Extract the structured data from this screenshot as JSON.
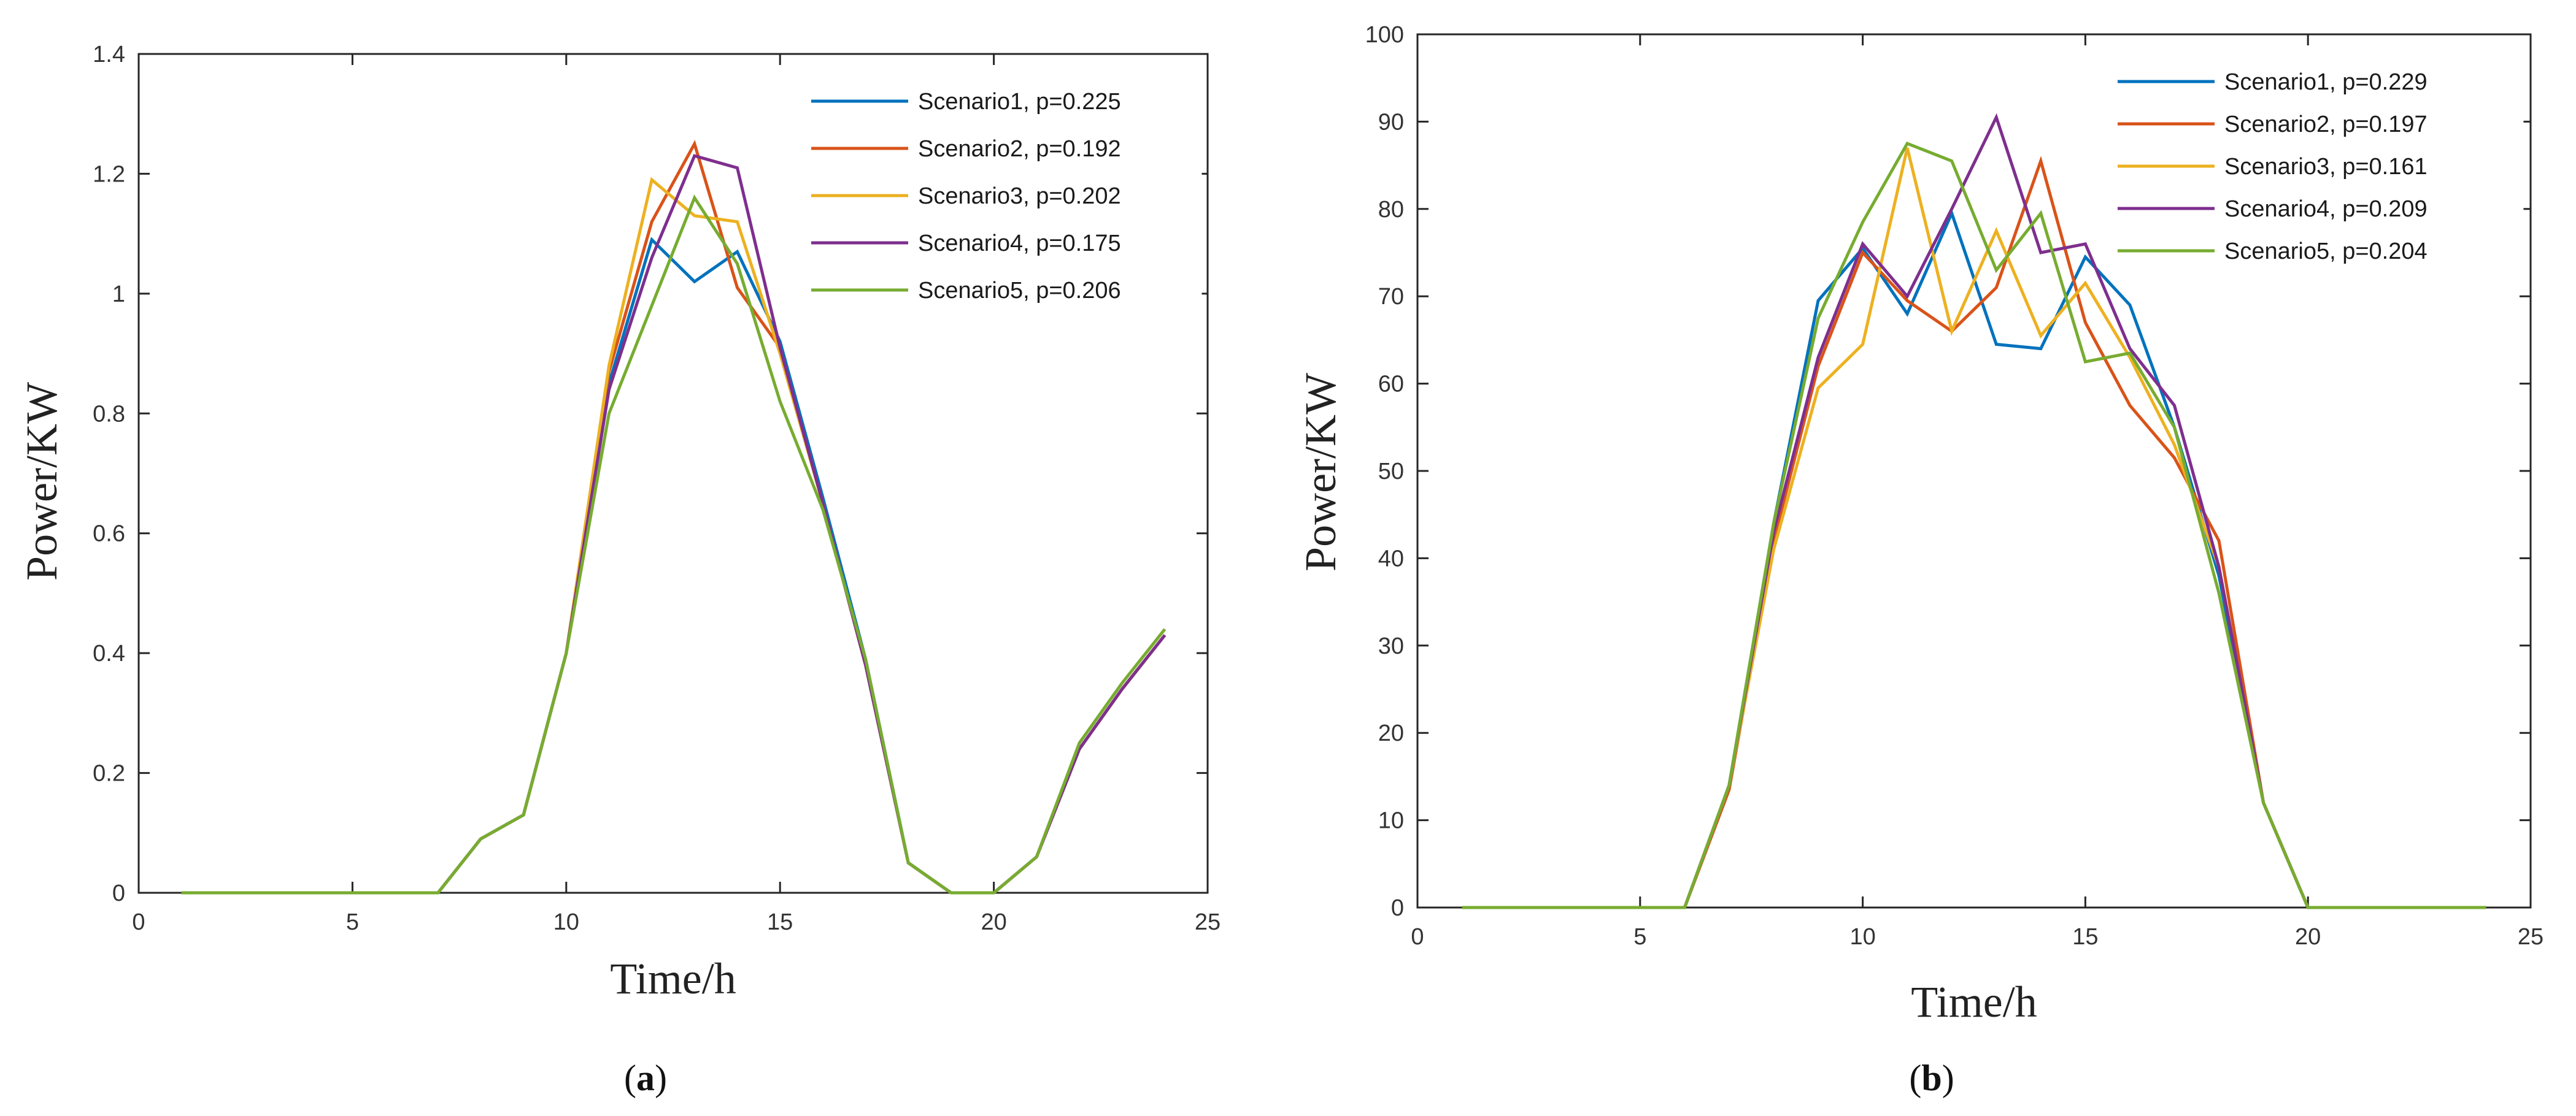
{
  "chart_data": [
    {
      "type": "line",
      "panel": "a",
      "caption_letter": "a",
      "xlabel": "Time/h",
      "ylabel": "Power/KW",
      "xlim": [
        0,
        25
      ],
      "ylim": [
        0,
        1.4
      ],
      "xticks": [
        0,
        5,
        10,
        15,
        20,
        25
      ],
      "yticks": [
        0,
        0.2,
        0.4,
        0.6,
        0.8,
        1,
        1.2,
        1.4
      ],
      "x": [
        1,
        2,
        3,
        4,
        5,
        6,
        7,
        8,
        9,
        10,
        11,
        12,
        13,
        14,
        15,
        16,
        17,
        18,
        19,
        20,
        21,
        22,
        23,
        24
      ],
      "legend_position": "top-right",
      "series": [
        {
          "name": "Scenario1, p=0.225",
          "color": "#0072BD",
          "values": [
            0,
            0,
            0,
            0,
            0,
            0,
            0,
            0.09,
            0.13,
            0.4,
            0.85,
            1.09,
            1.02,
            1.07,
            0.92,
            0.66,
            0.39,
            0.05,
            0,
            0,
            0.06,
            0.24,
            0.34,
            0.43
          ]
        },
        {
          "name": "Scenario2, p=0.192",
          "color": "#D95319",
          "values": [
            0,
            0,
            0,
            0,
            0,
            0,
            0,
            0.09,
            0.13,
            0.4,
            0.87,
            1.12,
            1.25,
            1.01,
            0.91,
            0.65,
            0.38,
            0.05,
            0,
            0,
            0.06,
            0.24,
            0.34,
            0.43
          ]
        },
        {
          "name": "Scenario3, p=0.202",
          "color": "#EDB120",
          "values": [
            0,
            0,
            0,
            0,
            0,
            0,
            0,
            0.09,
            0.13,
            0.4,
            0.88,
            1.19,
            1.13,
            1.12,
            0.9,
            0.65,
            0.38,
            0.05,
            0,
            0,
            0.06,
            0.24,
            0.34,
            0.43
          ]
        },
        {
          "name": "Scenario4, p=0.175",
          "color": "#7E2F8E",
          "values": [
            0,
            0,
            0,
            0,
            0,
            0,
            0,
            0.09,
            0.13,
            0.4,
            0.84,
            1.06,
            1.23,
            1.21,
            0.91,
            0.65,
            0.38,
            0.05,
            0,
            0,
            0.06,
            0.24,
            0.34,
            0.43
          ]
        },
        {
          "name": "Scenario5, p=0.206",
          "color": "#77AC30",
          "values": [
            0,
            0,
            0,
            0,
            0,
            0,
            0,
            0.09,
            0.13,
            0.4,
            0.8,
            0.98,
            1.16,
            1.05,
            0.82,
            0.64,
            0.39,
            0.05,
            0,
            0,
            0.06,
            0.25,
            0.35,
            0.44
          ]
        }
      ]
    },
    {
      "type": "line",
      "panel": "b",
      "caption_letter": "b",
      "xlabel": "Time/h",
      "ylabel": "Power/KW",
      "xlim": [
        0,
        25
      ],
      "ylim": [
        0,
        100
      ],
      "xticks": [
        0,
        5,
        10,
        15,
        20,
        25
      ],
      "yticks": [
        0,
        10,
        20,
        30,
        40,
        50,
        60,
        70,
        80,
        90,
        100
      ],
      "x": [
        1,
        2,
        3,
        4,
        5,
        6,
        7,
        8,
        9,
        10,
        11,
        12,
        13,
        14,
        15,
        16,
        17,
        18,
        19,
        20,
        21,
        22,
        23,
        24
      ],
      "legend_position": "top-right",
      "series": [
        {
          "name": "Scenario1, p=0.229",
          "color": "#0072BD",
          "values": [
            0,
            0,
            0,
            0,
            0,
            0,
            14,
            44,
            69.5,
            75.5,
            68,
            79.5,
            64.5,
            64,
            74.5,
            69,
            55,
            38,
            12,
            0,
            0,
            0,
            0,
            0
          ]
        },
        {
          "name": "Scenario2, p=0.197",
          "color": "#D95319",
          "values": [
            0,
            0,
            0,
            0,
            0,
            0,
            13.5,
            42,
            62,
            75,
            69.5,
            66,
            71,
            85.5,
            67,
            57.5,
            51.5,
            42,
            12,
            0,
            0,
            0,
            0,
            0
          ]
        },
        {
          "name": "Scenario3, p=0.161",
          "color": "#EDB120",
          "values": [
            0,
            0,
            0,
            0,
            0,
            0,
            14,
            41,
            59.5,
            64.5,
            87,
            66,
            77.5,
            65.5,
            71.5,
            63,
            53,
            39,
            12,
            0,
            0,
            0,
            0,
            0
          ]
        },
        {
          "name": "Scenario4, p=0.209",
          "color": "#7E2F8E",
          "values": [
            0,
            0,
            0,
            0,
            0,
            0,
            14,
            43,
            63,
            76,
            70,
            80,
            90.5,
            75,
            76,
            64,
            57.5,
            39,
            12,
            0,
            0,
            0,
            0,
            0
          ]
        },
        {
          "name": "Scenario5, p=0.204",
          "color": "#77AC30",
          "values": [
            0,
            0,
            0,
            0,
            0,
            0,
            14,
            44,
            67.5,
            78.5,
            87.5,
            85.5,
            73,
            79.5,
            62.5,
            63.5,
            55,
            36,
            12,
            0,
            0,
            0,
            0,
            0
          ]
        }
      ]
    }
  ]
}
